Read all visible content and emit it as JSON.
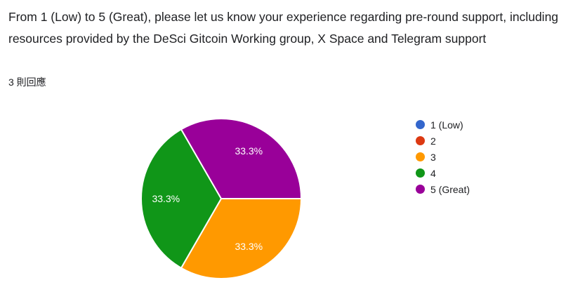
{
  "header": {
    "title": "From 1 (Low) to 5 (Great), please let us know your experience regarding pre-round support, including resources provided by the DeSci Gitcoin Working group, X Space and Telegram support",
    "response_count": "3 則回應"
  },
  "legend": {
    "position": "right",
    "items": [
      {
        "label": "1 (Low)",
        "color": "#3366CC"
      },
      {
        "label": "2",
        "color": "#DC3912"
      },
      {
        "label": "3",
        "color": "#FF9900"
      },
      {
        "label": "4",
        "color": "#109618"
      },
      {
        "label": "5 (Great)",
        "color": "#990099"
      }
    ]
  },
  "chart_data": {
    "type": "pie",
    "title": "From 1 (Low) to 5 (Great), please let us know your experience regarding pre-round support, including resources provided by the DeSci Gitcoin Working group, X Space and Telegram support",
    "subtitle": "3 則回應",
    "total_responses": 3,
    "categories": [
      "1 (Low)",
      "2",
      "3",
      "4",
      "5 (Great)"
    ],
    "values": [
      0,
      0,
      1,
      1,
      1
    ],
    "percentages": [
      0,
      0,
      33.3,
      33.3,
      33.3
    ],
    "percent_labels": [
      "0%",
      "0%",
      "33.3%",
      "33.3%",
      "33.3%"
    ],
    "colors": [
      "#3366CC",
      "#DC3912",
      "#FF9900",
      "#109618",
      "#990099"
    ],
    "slice_label_color": "#ffffff",
    "separator_color": "#ffffff",
    "legend_position": "right",
    "start_angle": 90,
    "direction": "clockwise"
  }
}
